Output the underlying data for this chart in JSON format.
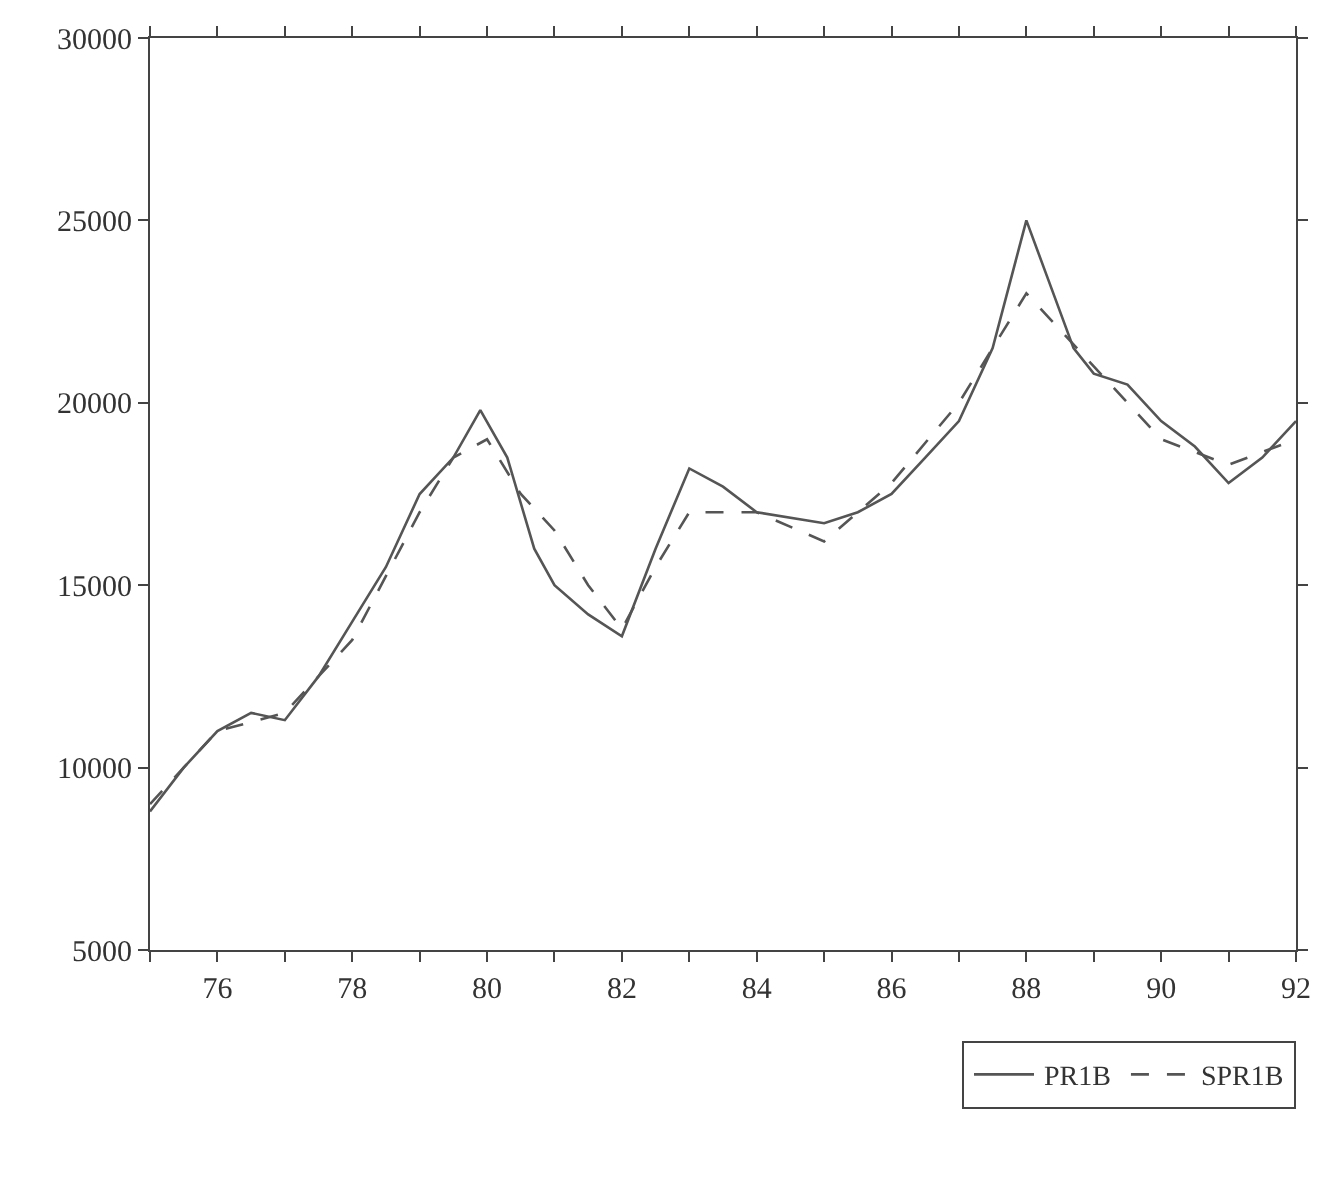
{
  "chart_data": {
    "type": "line",
    "xlim": [
      75,
      92
    ],
    "ylim": [
      5000,
      30000
    ],
    "xticks": [
      {
        "value": 75,
        "label": null
      },
      76,
      {
        "value": 77,
        "label": null
      },
      78,
      {
        "value": 79,
        "label": null
      },
      80,
      {
        "value": 81,
        "label": null
      },
      82,
      {
        "value": 83,
        "label": null
      },
      84,
      {
        "value": 85,
        "label": null
      },
      86,
      {
        "value": 87,
        "label": null
      },
      88,
      {
        "value": 89,
        "label": null
      },
      90,
      {
        "value": 91,
        "label": null
      },
      92
    ],
    "yticks": [
      5000,
      10000,
      15000,
      20000,
      25000,
      30000
    ],
    "legend": "bottom right",
    "series": [
      {
        "name": "PR1B",
        "color": "#555555",
        "line_style": "solid",
        "x": [
          75,
          75.5,
          76,
          76.5,
          77,
          77.5,
          78,
          78.5,
          79,
          79.5,
          79.9,
          80.3,
          80.7,
          81,
          81.5,
          82,
          82.5,
          83,
          83.5,
          84,
          85,
          85.5,
          86,
          86.5,
          87,
          87.5,
          88,
          88.3,
          88.7,
          89,
          89.5,
          90,
          90.5,
          91,
          91.5,
          92
        ],
        "values": [
          8800,
          10000,
          11000,
          11500,
          11300,
          12500,
          14000,
          15500,
          17500,
          18500,
          19800,
          18500,
          16000,
          15000,
          14200,
          13600,
          16000,
          18200,
          17700,
          17000,
          16700,
          17000,
          17500,
          18500,
          19500,
          21500,
          25000,
          23500,
          21500,
          20800,
          20500,
          19500,
          18800,
          17800,
          18500,
          19500
        ]
      },
      {
        "name": "SPR1B",
        "color": "#555555",
        "line_style": "dashed",
        "x": [
          75,
          76,
          77,
          78,
          79,
          79.5,
          80,
          80.5,
          81,
          81.5,
          82,
          82.5,
          83,
          84,
          85,
          86,
          87,
          88,
          88.5,
          89,
          90,
          91,
          92
        ],
        "values": [
          9000,
          11000,
          11500,
          13500,
          17000,
          18500,
          19000,
          17500,
          16500,
          15000,
          13800,
          15500,
          17000,
          17000,
          16200,
          17800,
          20000,
          23000,
          22000,
          21000,
          19000,
          18300,
          19000
        ]
      }
    ]
  }
}
